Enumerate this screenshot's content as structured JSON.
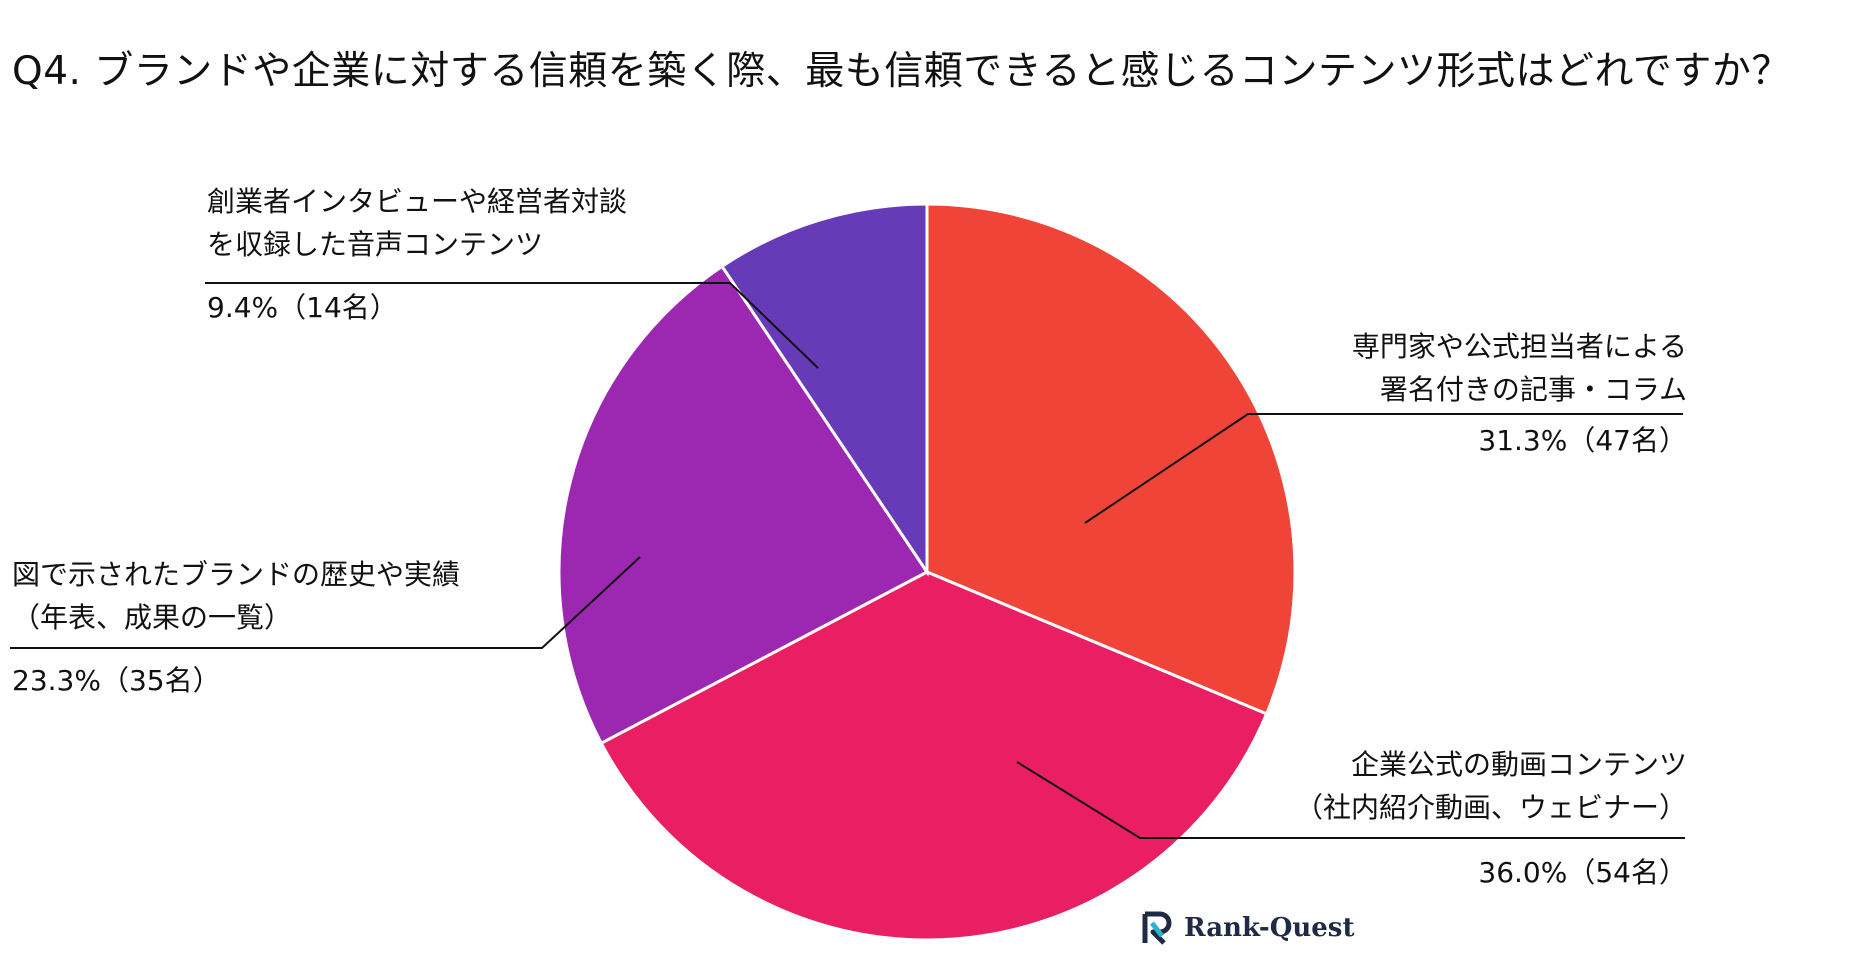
{
  "chart_data": {
    "type": "pie",
    "title": "Q4. ブランドや企業に対する信頼を築く際、最も信頼できると感じるコンテンツ形式はどれですか？",
    "slices": [
      {
        "label_lines": [
          "専門家や公式担当者による",
          "署名付きの記事・コラム"
        ],
        "percent": 31.3,
        "count": 47,
        "value_label": "31.3%（47名）",
        "color": "#F04438"
      },
      {
        "label_lines": [
          "企業公式の動画コンテンツ",
          "（社内紹介動画、ウェビナー）"
        ],
        "percent": 36.0,
        "count": 54,
        "value_label": "36.0%（54名）",
        "color": "#E91E63"
      },
      {
        "label_lines": [
          "図で示されたブランドの歴史や実績",
          "（年表、成果の一覧）"
        ],
        "percent": 23.3,
        "count": 35,
        "value_label": "23.3%（35名）",
        "color": "#9C27B0"
      },
      {
        "label_lines": [
          "創業者インタビューや経営者対談",
          "を収録した音声コンテンツ"
        ],
        "percent": 9.4,
        "count": 14,
        "value_label": "9.4%（14名）",
        "color": "#673AB7"
      }
    ]
  },
  "logo": {
    "text": "Rank-Quest",
    "color": "#2BB5C9"
  }
}
